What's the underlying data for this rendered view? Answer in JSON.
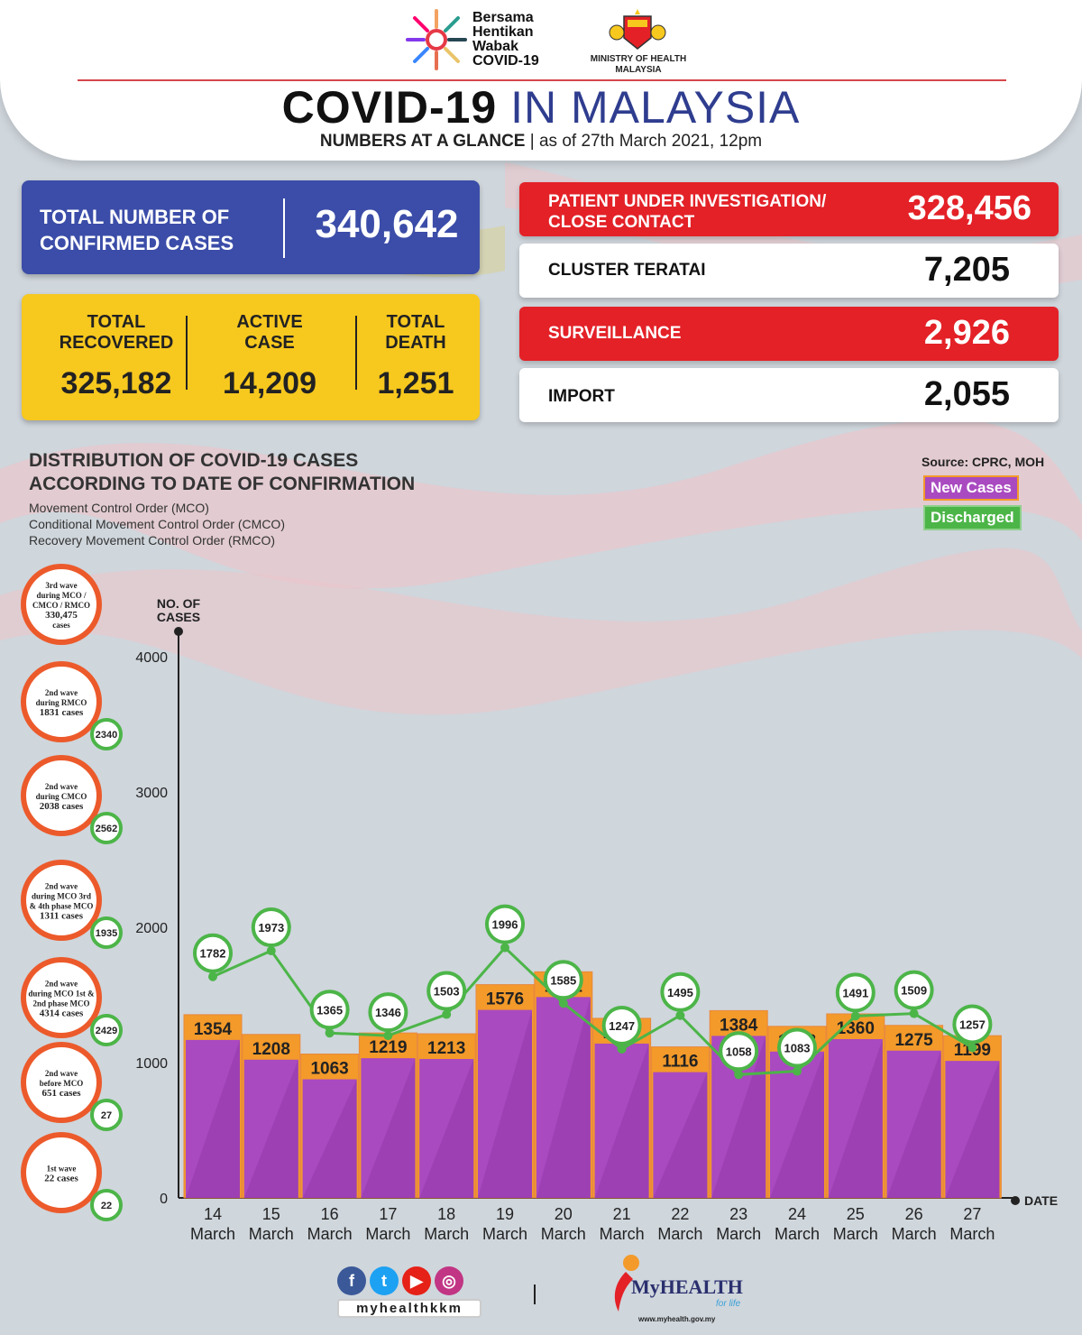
{
  "header": {
    "campaign": [
      "Bersama",
      "Hentikan",
      "Wabak",
      "COVID-19"
    ],
    "ministry": [
      "MINISTRY OF HEALTH",
      "MALAYSIA"
    ],
    "title_part1": "COVID-19",
    "title_part2": "IN MALAYSIA",
    "subtitle_bold": "NUMBERS AT A GLANCE",
    "subtitle_rest": " | as of 27th March 2021, 12pm"
  },
  "stats": {
    "confirmed_label_1": "TOTAL NUMBER OF",
    "confirmed_label_2": "CONFIRMED CASES",
    "confirmed_value": "340,642",
    "recovered_label_1": "TOTAL",
    "recovered_label_2": "RECOVERED",
    "recovered_value": "325,182",
    "active_label_1": "ACTIVE",
    "active_label_2": "CASE",
    "active_value": "14,209",
    "death_label_1": "TOTAL",
    "death_label_2": "DEATH",
    "death_value": "1,251",
    "pui_label_1": "PATIENT UNDER INVESTIGATION/",
    "pui_label_2": "CLOSE CONTACT",
    "pui_value": "328,456",
    "cluster_label": "CLUSTER TERATAI",
    "cluster_value": "7,205",
    "surveillance_label": "SURVEILLANCE",
    "surveillance_value": "2,926",
    "import_label": "IMPORT",
    "import_value": "2,055"
  },
  "section": {
    "title_1": "DISTRIBUTION OF COVID-19 CASES",
    "title_2": "ACCORDING TO DATE OF CONFIRMATION",
    "sub_1": "Movement Control Order (MCO)",
    "sub_2": "Conditional Movement Control Order (CMCO)",
    "sub_3": "Recovery Movement Control Order (RMCO)",
    "source": "Source: CPRC, MOH",
    "legend_new": "New Cases",
    "legend_discharged": "Discharged"
  },
  "waves": [
    {
      "lines": [
        "3rd wave",
        "during MCO /",
        "CMCO / RMCO",
        "330,475",
        "cases"
      ],
      "discharged": ""
    },
    {
      "lines": [
        "2nd wave",
        "during RMCO",
        "1831 cases"
      ],
      "discharged": "2340"
    },
    {
      "lines": [
        "2nd wave",
        "during CMCO",
        "2038 cases"
      ],
      "discharged": "2562"
    },
    {
      "lines": [
        "2nd wave",
        "during MCO 3rd",
        "& 4th phase MCO",
        "1311 cases"
      ],
      "discharged": "1935"
    },
    {
      "lines": [
        "2nd wave",
        "during MCO 1st &",
        "2nd phase MCO",
        "4314 cases"
      ],
      "discharged": "2429"
    },
    {
      "lines": [
        "2nd wave",
        "before MCO",
        "651 cases"
      ],
      "discharged": "27"
    },
    {
      "lines": [
        "1st wave",
        "22 cases"
      ],
      "discharged": "22"
    }
  ],
  "chart_data": {
    "type": "bar",
    "ylabel": "NO. OF CASES",
    "xlabel": "DATE",
    "ylim": [
      0,
      4000
    ],
    "yticks": [
      0,
      1000,
      2000,
      3000,
      4000
    ],
    "categories": [
      "14\nMarch",
      "15\nMarch",
      "16\nMarch",
      "17\nMarch",
      "18\nMarch",
      "19\nMarch",
      "20\nMarch",
      "21\nMarch",
      "22\nMarch",
      "23\nMarch",
      "24\nMarch",
      "25\nMarch",
      "26\nMarch",
      "27\nMarch"
    ],
    "series": [
      {
        "name": "New Cases",
        "type": "bar",
        "values": [
          1354,
          1208,
          1063,
          1219,
          1213,
          1576,
          1671,
          1327,
          1116,
          1384,
          1268,
          1360,
          1275,
          1199
        ]
      },
      {
        "name": "Discharged",
        "type": "line",
        "values": [
          1782,
          1973,
          1365,
          1346,
          1503,
          1996,
          1585,
          1247,
          1495,
          1058,
          1083,
          1491,
          1509,
          1257
        ]
      }
    ]
  },
  "footer": {
    "handle": "myhealthkkm",
    "brand": "MyHEALTH",
    "tagline": "for life",
    "url": "www.myhealth.gov.my"
  },
  "colors": {
    "bar_fill": "#a94ac0",
    "bar_top": "#f39a2a",
    "line": "#4cb548",
    "red": "#e32127",
    "blue": "#3b4da8",
    "yellow": "#f7c81e"
  }
}
